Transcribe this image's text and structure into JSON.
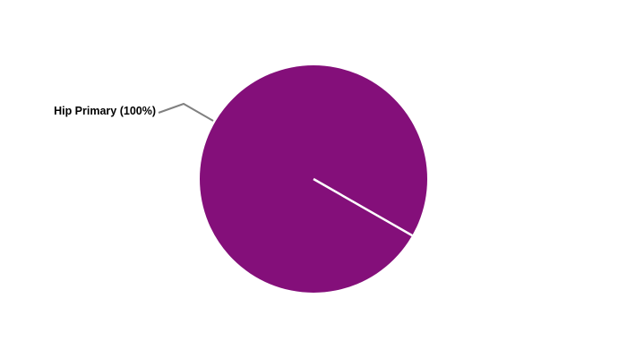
{
  "chart_data": {
    "type": "pie",
    "slices": [
      {
        "label": "Hip Primary",
        "value": 100,
        "percent_label": "Hip Primary (100%)",
        "color": "#840F7A"
      }
    ],
    "legend": "none",
    "leader_line_color": "#808080"
  }
}
